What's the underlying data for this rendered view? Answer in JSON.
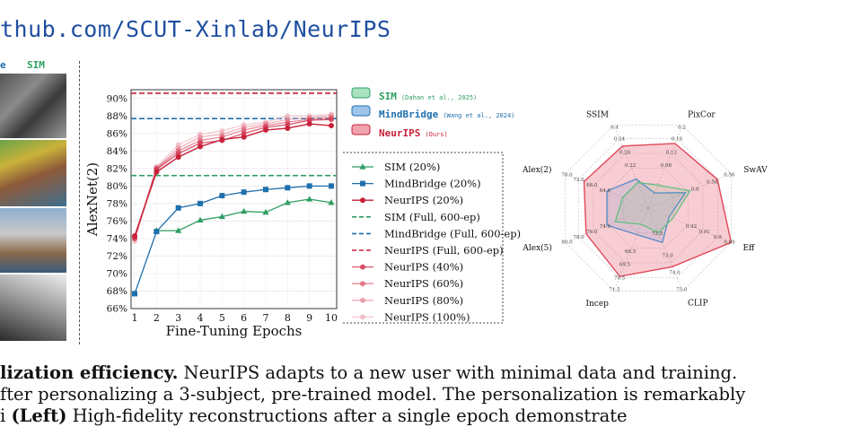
{
  "header": {
    "url": "thub.com/SCUT-Xinlab/NeurIPS"
  },
  "strip": {
    "label_e": "e",
    "label_sim": "SIM"
  },
  "colors": {
    "sim": "#2e9e63",
    "mindbridge": "#1f6fad",
    "neurips": "#c8213a",
    "neurips_light": "#e58a9a",
    "radar_sim": "#5cbf7c",
    "radar_mb": "#4a86c9",
    "radar_neurips": "#e0485a"
  },
  "legend_top": {
    "items": [
      {
        "name": "SIM",
        "cite": "(Dahan et al., 2025)"
      },
      {
        "name": "MindBridge",
        "cite": "(Wang et al., 2024)"
      },
      {
        "name": "NeurIPS",
        "cite": "(Ours)"
      }
    ]
  },
  "chart_data": [
    {
      "type": "line",
      "xlabel": "Fine-Tuning Epochs",
      "ylabel": "AlexNet(2)",
      "x": [
        1,
        2,
        3,
        4,
        5,
        6,
        7,
        8,
        9,
        10
      ],
      "ylim": [
        66,
        91
      ],
      "yticks": [
        "66%",
        "68%",
        "70%",
        "72%",
        "74%",
        "76%",
        "78%",
        "80%",
        "82%",
        "84%",
        "86%",
        "88%",
        "90%"
      ],
      "series": [
        {
          "name": "SIM (20%)",
          "values": [
            null,
            74.9,
            74.9,
            76.1,
            76.5,
            77.1,
            77.0,
            78.1,
            78.5,
            78.1
          ]
        },
        {
          "name": "MindBridge (20%)",
          "values": [
            67.7,
            74.8,
            77.5,
            78.0,
            78.9,
            79.3,
            79.6,
            79.8,
            80.0,
            80.0
          ]
        },
        {
          "name": "NeurIPS (20%)",
          "values": [
            74.3,
            81.6,
            83.3,
            84.5,
            85.3,
            85.6,
            86.4,
            86.6,
            87.1,
            86.9
          ]
        },
        {
          "name": "NeurIPS (40%)",
          "values": [
            74.0,
            81.9,
            83.7,
            84.9,
            85.2,
            86.0,
            86.7,
            87.0,
            87.5,
            87.6
          ]
        },
        {
          "name": "NeurIPS (60%)",
          "values": [
            74.1,
            82.0,
            84.0,
            85.2,
            85.6,
            86.4,
            86.9,
            87.3,
            87.6,
            87.8
          ]
        },
        {
          "name": "NeurIPS (80%)",
          "values": [
            74.2,
            82.1,
            84.3,
            85.6,
            85.9,
            86.7,
            87.1,
            87.6,
            87.8,
            88.0
          ]
        },
        {
          "name": "NeurIPS (100%)",
          "values": [
            73.7,
            82.2,
            84.7,
            85.9,
            86.3,
            87.0,
            87.3,
            88.0,
            88.0,
            88.2
          ]
        }
      ],
      "reference_lines": [
        {
          "name": "SIM (Full, 600-ep)",
          "value": 81.2
        },
        {
          "name": "MindBridge (Full, 600-ep)",
          "value": 87.7
        },
        {
          "name": "NeurIPS (Full, 600-ep)",
          "value": 90.6
        }
      ]
    },
    {
      "type": "radar",
      "axes": [
        {
          "name": "SSIM",
          "ticks": [
            "0.22",
            "0.28",
            "0.34",
            "0.4"
          ],
          "min": 0.19,
          "max": 0.4
        },
        {
          "name": "PixCor",
          "ticks": [
            "0.08",
            "0.12",
            "0.16",
            "0.2"
          ],
          "min": 0.06,
          "max": 0.2
        },
        {
          "name": "SwAV",
          "ticks": [
            "0.6",
            "0.58",
            "0.56"
          ],
          "min": 0.63,
          "max": 0.55
        },
        {
          "name": "Eff",
          "ticks": [
            "0.92",
            "0.91",
            "0.9",
            "0.89"
          ],
          "min": 0.93,
          "max": 0.89
        },
        {
          "name": "CLIP",
          "ticks": [
            "73.0",
            "74.0",
            "75.0"
          ],
          "min": 72.0,
          "max": 75.0
        },
        {
          "name": "Incep",
          "ticks": [
            "68.5",
            "69.5",
            "70.5",
            "71.5"
          ],
          "min": 68.0,
          "max": 71.5
        },
        {
          "name": "Alex(5)",
          "ticks": [
            "74.0",
            "76.0",
            "78.0",
            "80.0"
          ],
          "min": 73.0,
          "max": 80.0
        },
        {
          "name": "Alex(2)",
          "ticks": [
            "64.0",
            "68.0",
            "72.0",
            "76.0"
          ],
          "min": 62.0,
          "max": 76.0
        }
      ],
      "extra_ticks": [
        "72.0"
      ],
      "series": [
        {
          "name": "SIM",
          "values": [
            0.235,
            0.085,
            0.595,
            0.922,
            72.6,
            68.3,
            75.2,
            65.0
          ]
        },
        {
          "name": "MindBridge",
          "values": [
            0.245,
            0.07,
            0.6,
            0.924,
            73.0,
            68.8,
            76.0,
            68.0
          ]
        },
        {
          "name": "NeurIPS",
          "values": [
            0.34,
            0.165,
            0.565,
            0.89,
            74.0,
            70.8,
            78.0,
            72.4
          ]
        }
      ]
    }
  ],
  "caption": {
    "line1_bold": "lization efficiency.",
    "line1_rest": " NeurIPS adapts to a new user with minimal data and training.",
    "line2": "fter personalizing a 3-subject, pre-trained model. The personalization is remarkably",
    "line3_a": "i",
    "line3_b": "(Left)",
    "line3_c": " High-fidelity reconstructions after a single epoch demonstrate"
  }
}
